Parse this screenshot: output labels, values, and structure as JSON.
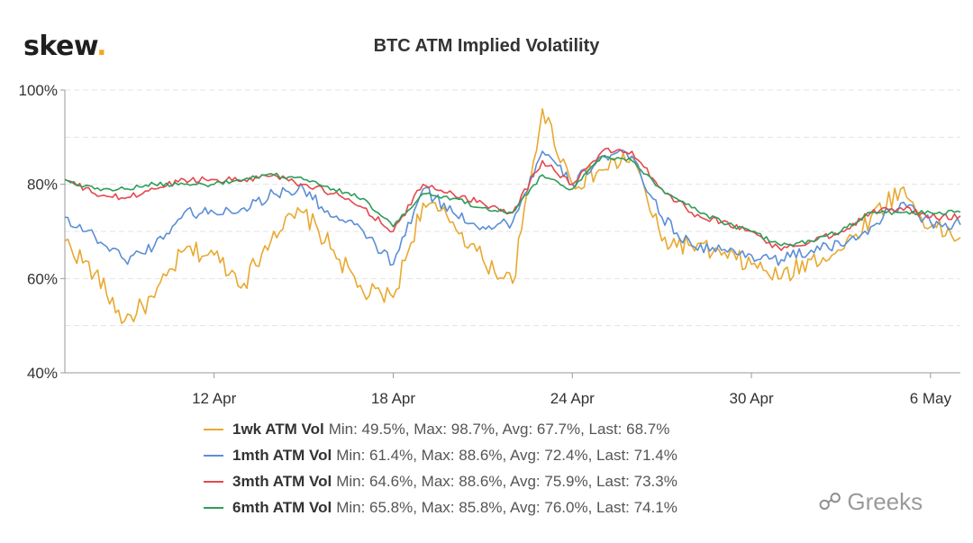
{
  "logo": {
    "text": "skew",
    "dot": "."
  },
  "watermark": {
    "text": "Greeks",
    "icon": "wechat-icon"
  },
  "chart_data": {
    "type": "line",
    "title": "BTC ATM Implied Volatility",
    "y_tick_labels": [
      "40%",
      "60%",
      "80%",
      "100%"
    ],
    "y_ticks": [
      40,
      60,
      80,
      100
    ],
    "ylim": [
      40,
      100
    ],
    "xlim": [
      "2020-04-07",
      "2020-05-07"
    ],
    "x_tick_labels": [
      "12 Apr",
      "18 Apr",
      "24 Apr",
      "30 Apr",
      "6 May"
    ],
    "x_ticks": [
      "2020-04-12",
      "2020-04-18",
      "2020-04-24",
      "2020-04-30",
      "2020-05-06"
    ],
    "grid": true,
    "legend_position": "bottom",
    "x": [
      "2020-04-07",
      "2020-04-08",
      "2020-04-09",
      "2020-04-10",
      "2020-04-11",
      "2020-04-12",
      "2020-04-13",
      "2020-04-14",
      "2020-04-15",
      "2020-04-16",
      "2020-04-17",
      "2020-04-18",
      "2020-04-19",
      "2020-04-20",
      "2020-04-21",
      "2020-04-22",
      "2020-04-23",
      "2020-04-24",
      "2020-04-25",
      "2020-04-26",
      "2020-04-27",
      "2020-04-28",
      "2020-04-29",
      "2020-04-30",
      "2020-05-01",
      "2020-05-02",
      "2020-05-03",
      "2020-05-04",
      "2020-05-05",
      "2020-05-06",
      "2020-05-07"
    ],
    "series": [
      {
        "name": "1wk ATM Vol",
        "color": "#e8a930",
        "legend_stats": "Min: 49.5%, Max: 98.7%, Avg: 67.7%, Last: 68.7%",
        "values": [
          68,
          61,
          51,
          56,
          66,
          65,
          59,
          70,
          74,
          66,
          57,
          56,
          76,
          72,
          64,
          59,
          96,
          80,
          83,
          86,
          68,
          67,
          65,
          63,
          60,
          64,
          66,
          73,
          79,
          71,
          68.7
        ]
      },
      {
        "name": "1mth ATM Vol",
        "color": "#5b8fd6",
        "legend_stats": "Min: 61.4%, Max: 88.6%, Avg: 72.4%, Last: 71.4%",
        "values": [
          73,
          69,
          64,
          67,
          74,
          74,
          75,
          78,
          79,
          73,
          70,
          63,
          79,
          74,
          71,
          72,
          87,
          80,
          86,
          86,
          73,
          67,
          66,
          65,
          64,
          66,
          67,
          71,
          76,
          72,
          71.4
        ]
      },
      {
        "name": "3mth ATM Vol",
        "color": "#e5484d",
        "legend_stats": "Min: 64.6%, Max: 88.6%, Avg: 75.9%, Last: 73.3%",
        "values": [
          81,
          78,
          77,
          79,
          81,
          81,
          81,
          82,
          80,
          78,
          75,
          70,
          80,
          78,
          76,
          74,
          85,
          80,
          87,
          87,
          79,
          74,
          72,
          70,
          66,
          68,
          70,
          74,
          75,
          73,
          73.3
        ]
      },
      {
        "name": "6mth ATM Vol",
        "color": "#2e9d5a",
        "legend_stats": "Min: 65.8%, Max: 85.8%, Avg: 76.0%, Last: 74.1%",
        "values": [
          81,
          79,
          79,
          80,
          80,
          80,
          81,
          82,
          81,
          79,
          77,
          71,
          78,
          77,
          75,
          74,
          82,
          79,
          86,
          85,
          79,
          75,
          72,
          70,
          67,
          68,
          70,
          74,
          74,
          74,
          74.1
        ]
      }
    ]
  }
}
